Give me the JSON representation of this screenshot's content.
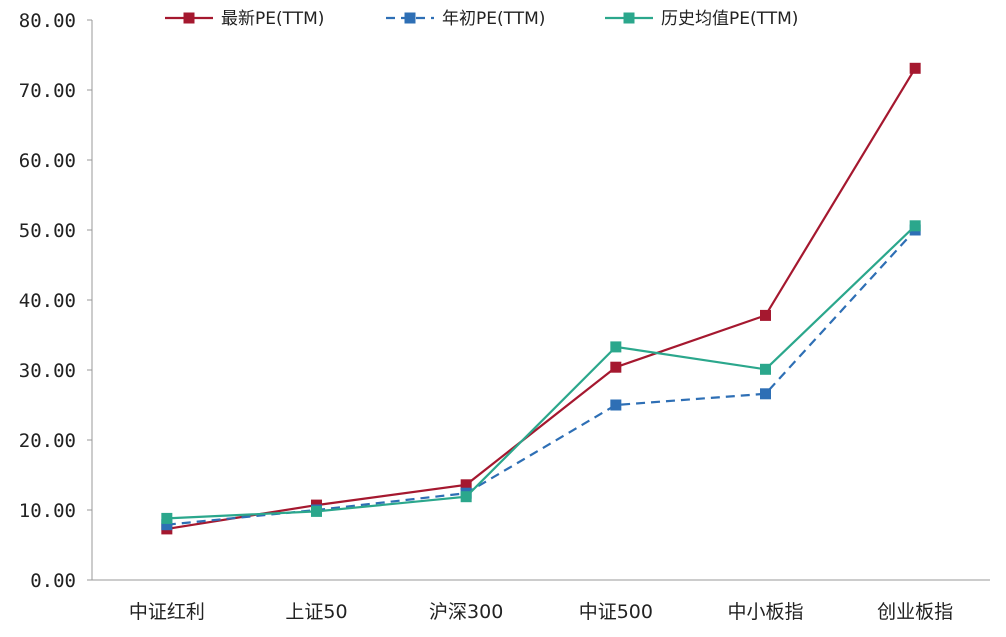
{
  "chart_data": {
    "type": "line",
    "categories": [
      "中证红利",
      "上证50",
      "沪深300",
      "中证500",
      "中小板指",
      "创业板指"
    ],
    "series": [
      {
        "name": "最新PE(TTM)",
        "values": [
          7.3,
          10.7,
          13.6,
          30.4,
          37.8,
          73.1
        ],
        "color": "#A5182F",
        "dash": "none"
      },
      {
        "name": "年初PE(TTM)",
        "values": [
          7.9,
          10.0,
          12.4,
          25.0,
          26.6,
          50.0
        ],
        "color": "#2E6FB5",
        "dash": "dashed"
      },
      {
        "name": "历史均值PE(TTM)",
        "values": [
          8.8,
          9.8,
          11.9,
          33.3,
          30.1,
          50.6
        ],
        "color": "#2BA78C",
        "dash": "none"
      }
    ],
    "yticks": [
      "0.00",
      "10.00",
      "20.00",
      "30.00",
      "40.00",
      "50.00",
      "60.00",
      "70.00",
      "80.00"
    ],
    "ylim": [
      0,
      80
    ],
    "grid": false,
    "legend": "top-center"
  }
}
